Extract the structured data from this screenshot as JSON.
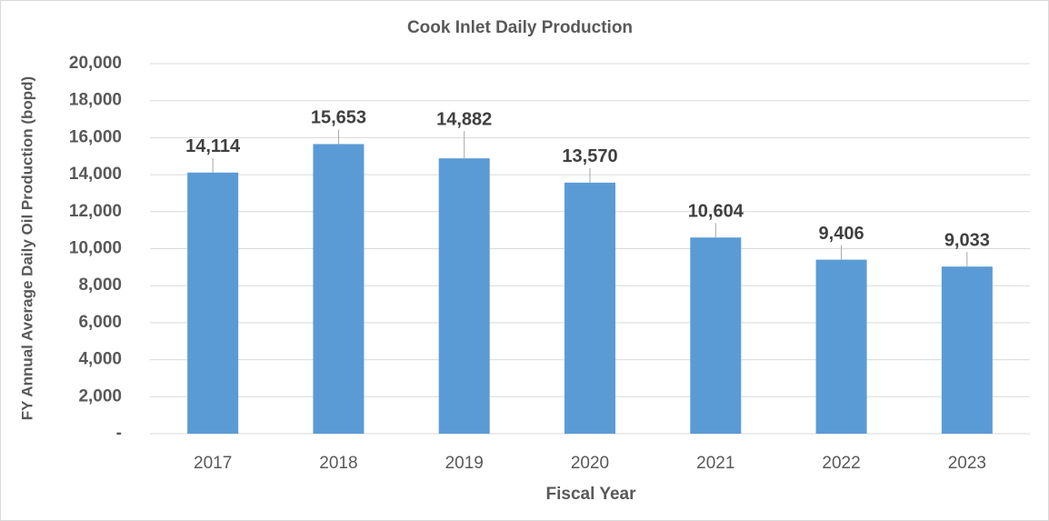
{
  "chart_data": {
    "type": "bar",
    "title": "Cook Inlet Daily Production",
    "x_label": "Fiscal Year",
    "y_label": "FY Annual Average Daily Oil Production (bopd)",
    "categories": [
      "2017",
      "2018",
      "2019",
      "2020",
      "2021",
      "2022",
      "2023"
    ],
    "values": [
      14114,
      15653,
      14882,
      13570,
      10604,
      9406,
      9033
    ],
    "value_labels": [
      "14,114",
      "15,653",
      "14,882",
      "13,570",
      "10,604",
      "9,406",
      "9,033"
    ],
    "color": "#5b9bd5",
    "ylim": [
      0,
      20000
    ],
    "yticks": [
      {
        "value": 0,
        "label": "-"
      },
      {
        "value": 2000,
        "label": "2,000"
      },
      {
        "value": 4000,
        "label": "4,000"
      },
      {
        "value": 6000,
        "label": "6,000"
      },
      {
        "value": 8000,
        "label": "8,000"
      },
      {
        "value": 10000,
        "label": "10,000"
      },
      {
        "value": 12000,
        "label": "12,000"
      },
      {
        "value": 14000,
        "label": "14,000"
      },
      {
        "value": 16000,
        "label": "16,000"
      },
      {
        "value": 18000,
        "label": "18,000"
      },
      {
        "value": 20000,
        "label": "20,000"
      }
    ],
    "grid": true
  }
}
